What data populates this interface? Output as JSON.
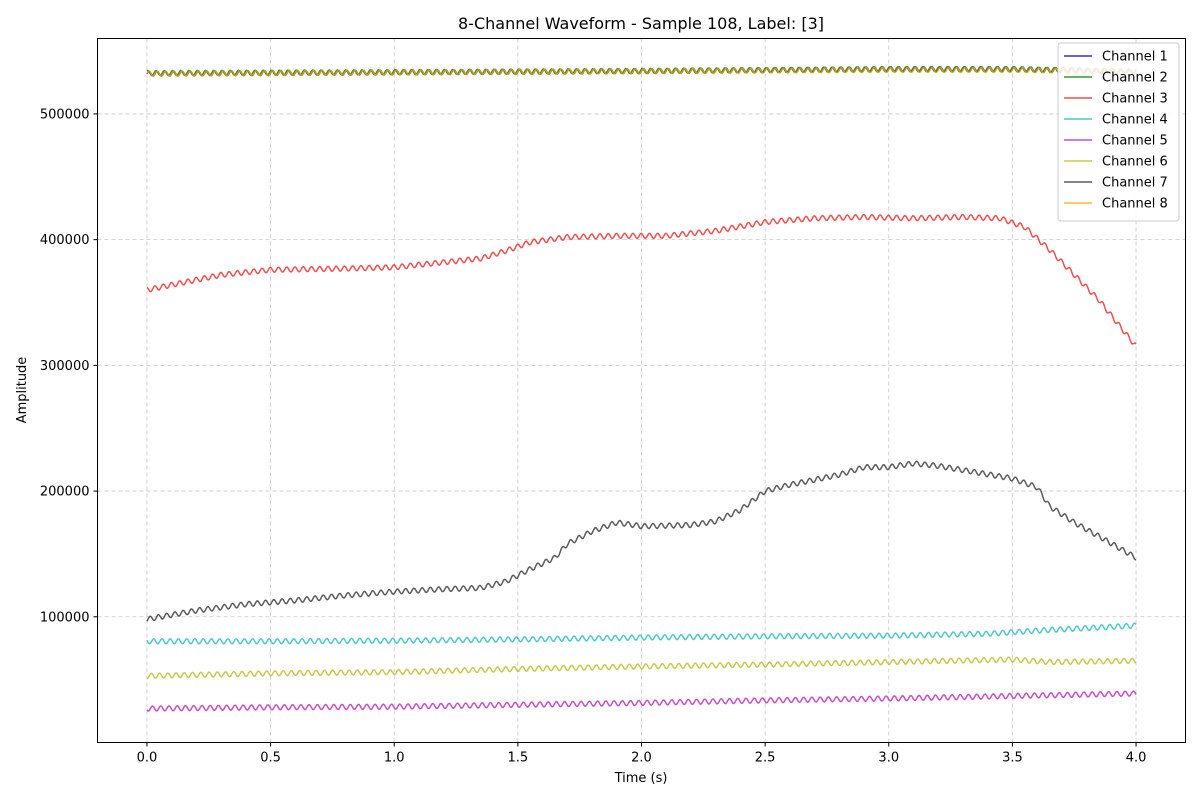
{
  "chart_data": {
    "type": "line",
    "title": "8-Channel Waveform - Sample 108, Label: [3]",
    "xlabel": "Time (s)",
    "ylabel": "Amplitude",
    "xlim": [
      -0.2,
      4.2
    ],
    "ylim": [
      0,
      560000
    ],
    "xticks": [
      0.0,
      0.5,
      1.0,
      1.5,
      2.0,
      2.5,
      3.0,
      3.5,
      4.0
    ],
    "xtick_labels": [
      "0.0",
      "0.5",
      "1.0",
      "1.5",
      "2.0",
      "2.5",
      "3.0",
      "3.5",
      "4.0"
    ],
    "yticks": [
      100000,
      200000,
      300000,
      400000,
      500000
    ],
    "ytick_labels": [
      "100000",
      "200000",
      "300000",
      "400000",
      "500000"
    ],
    "grid": true,
    "legend_position": "top-right",
    "oscillation": {
      "cycles": 120,
      "amplitude": 2000
    },
    "series": [
      {
        "name": "Channel 1",
        "color": "#0000cc",
        "x": [
          0,
          1,
          2,
          3,
          3.5,
          4
        ],
        "y": [
          532000,
          533000,
          534000,
          535500,
          535500,
          533500
        ]
      },
      {
        "name": "Channel 2",
        "color": "#008000",
        "x": [
          0,
          1,
          2,
          3,
          3.5,
          4
        ],
        "y": [
          532500,
          533200,
          534200,
          535500,
          535500,
          533800
        ]
      },
      {
        "name": "Channel 3",
        "color": "#ee2222",
        "x": [
          0,
          0.15,
          0.3,
          0.5,
          0.8,
          1.0,
          1.2,
          1.35,
          1.45,
          1.55,
          1.7,
          1.9,
          2.1,
          2.3,
          2.5,
          2.7,
          2.9,
          3.1,
          3.3,
          3.45,
          3.55,
          3.65,
          3.75,
          3.85,
          4.0
        ],
        "y": [
          360000,
          366000,
          372000,
          376000,
          377000,
          378000,
          382000,
          385000,
          391000,
          398000,
          402000,
          403000,
          403000,
          407000,
          414000,
          417000,
          418000,
          417000,
          418000,
          417000,
          410000,
          392000,
          372000,
          352000,
          315000
        ]
      },
      {
        "name": "Channel 4",
        "color": "#22bbbb",
        "x": [
          0,
          0.5,
          1.0,
          1.5,
          2.0,
          2.5,
          3.0,
          3.4,
          3.6,
          3.8,
          4.0
        ],
        "y": [
          80500,
          80500,
          81000,
          82000,
          83500,
          84500,
          85000,
          86500,
          89000,
          91000,
          93000
        ]
      },
      {
        "name": "Channel 5",
        "color": "#bb22bb",
        "x": [
          0,
          0.5,
          1.0,
          1.5,
          2.0,
          2.5,
          3.0,
          3.5,
          4.0
        ],
        "y": [
          27000,
          28000,
          28500,
          30000,
          31500,
          33500,
          35000,
          37000,
          39000
        ]
      },
      {
        "name": "Channel 6",
        "color": "#bbbb22",
        "x": [
          0,
          0.5,
          1.0,
          1.5,
          2.0,
          2.5,
          3.0,
          3.5,
          3.65,
          4.0
        ],
        "y": [
          53000,
          55000,
          56000,
          58500,
          60500,
          62000,
          64000,
          66000,
          64000,
          65000
        ]
      },
      {
        "name": "Channel 7",
        "color": "#333333",
        "x": [
          0,
          0.2,
          0.4,
          0.6,
          0.8,
          1.0,
          1.2,
          1.35,
          1.45,
          1.55,
          1.65,
          1.7,
          1.8,
          1.9,
          2.0,
          2.2,
          2.3,
          2.4,
          2.5,
          2.6,
          2.8,
          2.9,
          3.0,
          3.1,
          3.2,
          3.35,
          3.5,
          3.6,
          3.65,
          3.75,
          3.85,
          4.0
        ],
        "y": [
          98000,
          105000,
          110000,
          113000,
          117000,
          120000,
          122000,
          123000,
          128000,
          138000,
          147000,
          158000,
          168000,
          175000,
          172000,
          173000,
          176000,
          185000,
          200000,
          205000,
          213000,
          219000,
          219000,
          222000,
          220000,
          215000,
          210000,
          203000,
          188000,
          175000,
          164000,
          147000
        ]
      },
      {
        "name": "Channel 8",
        "color": "#ffa500",
        "x": [
          0,
          1,
          2,
          3,
          3.5,
          4
        ],
        "y": [
          532000,
          533000,
          534000,
          535000,
          535000,
          533500
        ]
      }
    ]
  }
}
